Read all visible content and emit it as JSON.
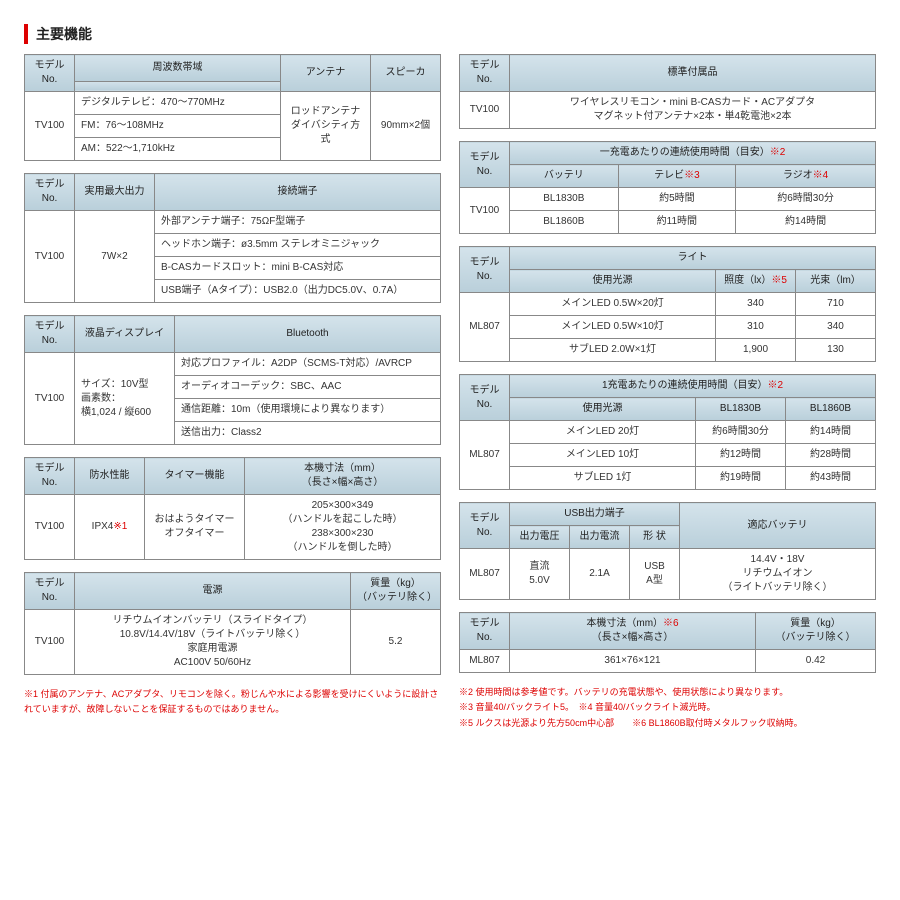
{
  "title": "主要機能",
  "left": {
    "t1": {
      "h": [
        "モデル\nNo.",
        "周波数帯域",
        "アンテナ",
        "スピーカ"
      ],
      "model": "TV100",
      "freq": [
        "デジタルテレビ：470〜770MHz",
        "FM：76〜108MHz",
        "AM：522〜1,710kHz"
      ],
      "antenna": "ロッドアンテナ\nダイバシティ方式",
      "speaker": "90mm×2個"
    },
    "t2": {
      "h": [
        "モデル\nNo.",
        "実用最大出力",
        "接続端子"
      ],
      "model": "TV100",
      "power": "7W×2",
      "conn": [
        "外部アンテナ端子：75ΩF型端子",
        "ヘッドホン端子：ø3.5mm ステレオミニジャック",
        "B-CASカードスロット：mini B-CAS対応",
        "USB端子（Aタイプ）：USB2.0（出力DC5.0V、0.7A）"
      ]
    },
    "t3": {
      "h": [
        "モデル\nNo.",
        "液晶ディスプレイ",
        "Bluetooth"
      ],
      "model": "TV100",
      "disp": "サイズ：10V型\n画素数：\n横1,024 / 縦600",
      "bt": [
        "対応プロファイル：A2DP（SCMS-T対応）/AVRCP",
        "オーディオコーデック：SBC、AAC",
        "通信距離：10m（使用環境により異なります）",
        "送信出力：Class2"
      ]
    },
    "t4": {
      "h": [
        "モデル\nNo.",
        "防水性能",
        "タイマー機能",
        "本機寸法（mm）\n（長さ×幅×高さ）"
      ],
      "model": "TV100",
      "wp": "IPX4",
      "wpnote": "※1",
      "timer": "おはようタイマー\nオフタイマー",
      "dim": "205×300×349\n（ハンドルを起こした時）\n238×300×230\n（ハンドルを倒した時）"
    },
    "t5": {
      "h": [
        "モデル\nNo.",
        "電源",
        "質量（kg）\n（バッテリ除く）"
      ],
      "model": "TV100",
      "pwr": "リチウムイオンバッテリ（スライドタイプ）\n10.8V/14.4V/18V（ライトバッテリ除く）\n家庭用電源\nAC100V 50/60Hz",
      "mass": "5.2"
    },
    "note": "※1 付属のアンテナ、ACアダプタ、リモコンを除く。粉じんや水による影響を受けにくいように設計されていますが、故障しないことを保証するものではありません。"
  },
  "right": {
    "t6": {
      "h": [
        "モデル\nNo.",
        "標準付属品"
      ],
      "model": "TV100",
      "acc": "ワイヤレスリモコン・mini B-CASカード・ACアダプタ\nマグネット付アンテナ×2本・単4乾電池×2本"
    },
    "t7": {
      "h1": "一充電あたりの連続使用時間（目安）",
      "h1note": "※2",
      "h": [
        "モデル\nNo.",
        "バッテリ",
        "テレビ",
        "ラジオ"
      ],
      "n3": "※3",
      "n4": "※4",
      "model": "TV100",
      "rows": [
        [
          "BL1830B",
          "約5時間",
          "約6時間30分"
        ],
        [
          "BL1860B",
          "約11時間",
          "約14時間"
        ]
      ]
    },
    "t8": {
      "h1": "ライト",
      "h": [
        "モデル\nNo.",
        "使用光源",
        "照度（lx）",
        "光束（lm）"
      ],
      "n5": "※5",
      "model": "ML807",
      "rows": [
        [
          "メインLED 0.5W×20灯",
          "340",
          "710"
        ],
        [
          "メインLED 0.5W×10灯",
          "310",
          "340"
        ],
        [
          "サブLED 2.0W×1灯",
          "1,900",
          "130"
        ]
      ]
    },
    "t9": {
      "h1": "1充電あたりの連続使用時間（目安）",
      "h1note": "※2",
      "h": [
        "モデル\nNo.",
        "使用光源",
        "BL1830B",
        "BL1860B"
      ],
      "model": "ML807",
      "rows": [
        [
          "メインLED 20灯",
          "約6時間30分",
          "約14時間"
        ],
        [
          "メインLED 10灯",
          "約12時間",
          "約28時間"
        ],
        [
          "サブLED 1灯",
          "約19時間",
          "約43時間"
        ]
      ]
    },
    "t10": {
      "h": [
        "モデル\nNo.",
        "USB出力端子",
        "適応バッテリ"
      ],
      "sub": [
        "出力電圧",
        "出力電流",
        "形 状"
      ],
      "model": "ML807",
      "v": "直流\n5.0V",
      "a": "2.1A",
      "shape": "USB\nA型",
      "batt": "14.4V・18V\nリチウムイオン\n（ライトバッテリ除く）"
    },
    "t11": {
      "h": [
        "モデル\nNo.",
        "本機寸法（mm）",
        "質量（kg）\n（バッテリ除く）"
      ],
      "n6": "※6",
      "dimsub": "（長さ×幅×高さ）",
      "model": "ML807",
      "dim": "361×76×121",
      "mass": "0.42"
    },
    "notes": [
      "※2 使用時間は参考値です。バッテリの充電状態や、使用状態により異なります。",
      "※3 音量40/バックライト5。　※4 音量40/バックライト滅光時。",
      "※5 ルクスは光源より先方50cm中心部　　※6 BL1860B取付時メタルフック収納時。"
    ]
  }
}
